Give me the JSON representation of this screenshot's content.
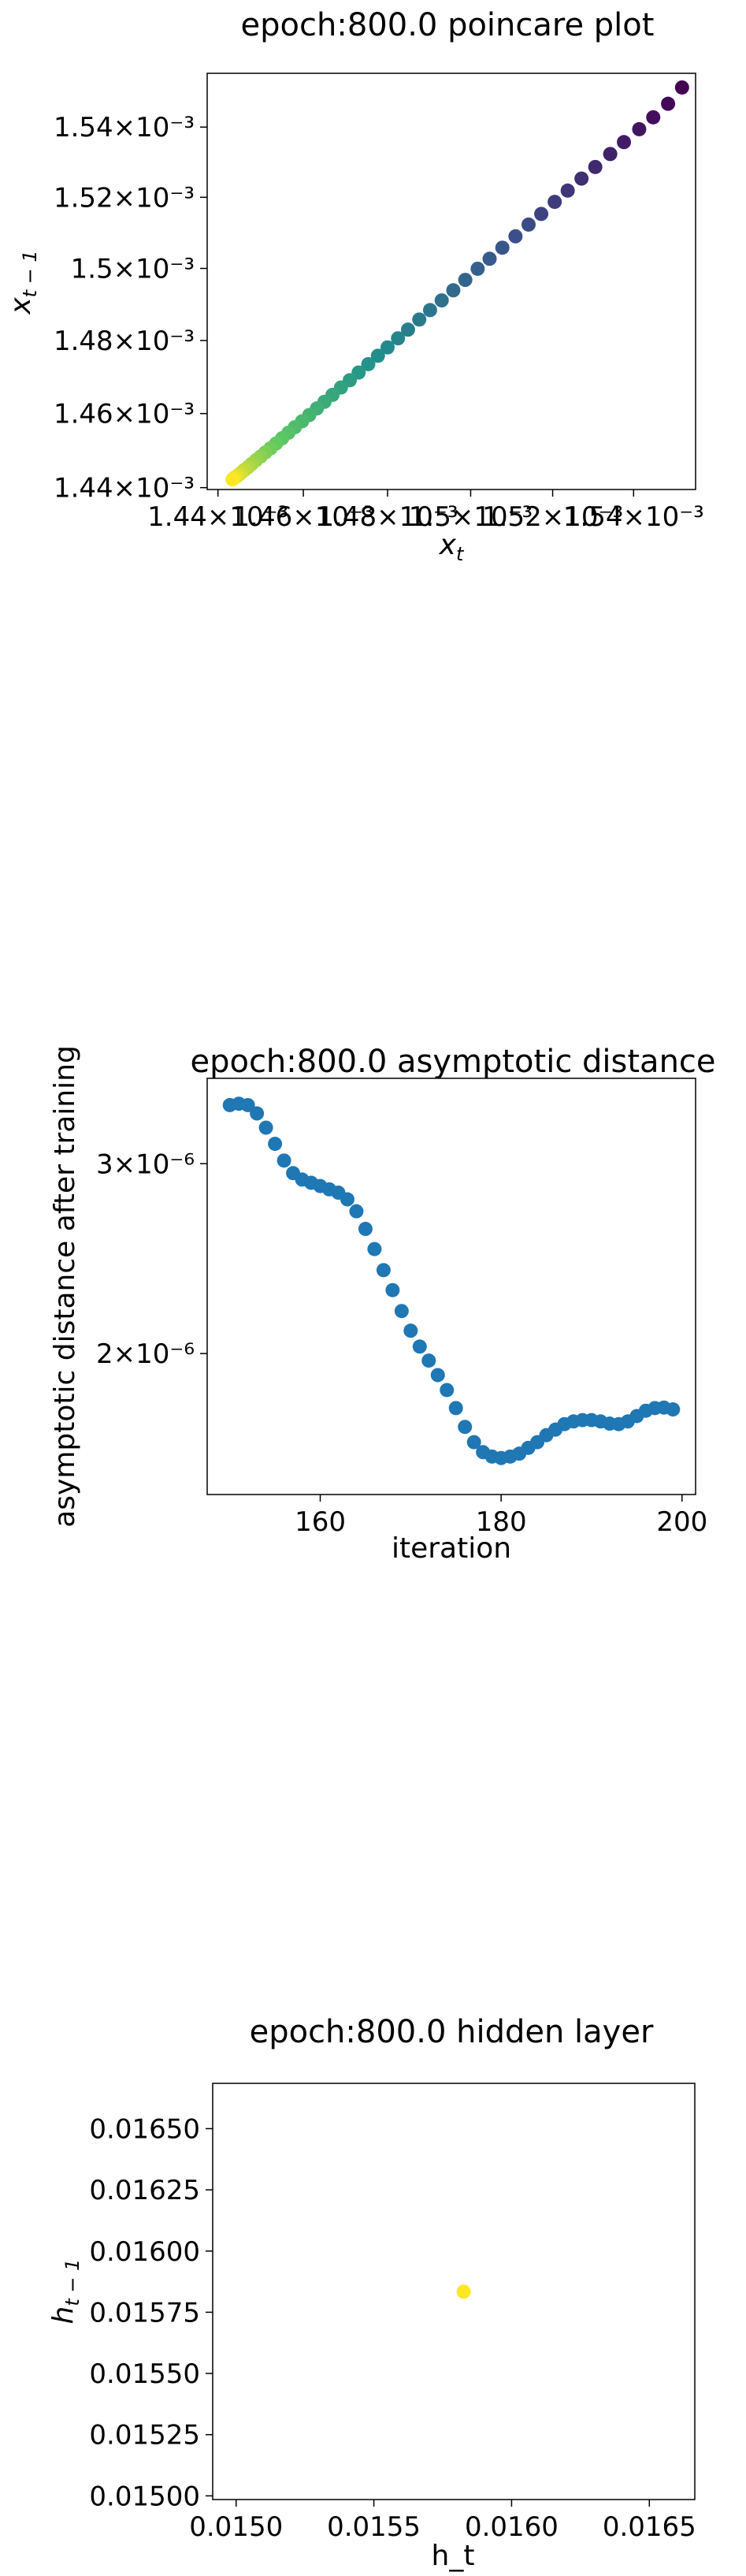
{
  "chart_data": [
    {
      "type": "scatter",
      "title": "epoch:800.0 poincare plot",
      "xlabel": "x_t",
      "ylabel": "x_{t-1}",
      "xscale": "log",
      "yscale": "log",
      "xlim": [
        0.0014375,
        0.0015555
      ],
      "ylim": [
        0.0014395,
        0.0015555
      ],
      "xticks": [
        {
          "value": 0.00144,
          "label": "1.44×10⁻³"
        },
        {
          "value": 0.00146,
          "label": "1.46×10⁻³"
        },
        {
          "value": 0.00148,
          "label": "1.48×10⁻³"
        },
        {
          "value": 0.0015,
          "label": "1.5×10⁻³"
        },
        {
          "value": 0.00152,
          "label": "1.52×10⁻³"
        },
        {
          "value": 0.00154,
          "label": "1.54×10⁻³"
        }
      ],
      "yticks": [
        {
          "value": 0.00144,
          "label": "1.44×10⁻³"
        },
        {
          "value": 0.00146,
          "label": "1.46×10⁻³"
        },
        {
          "value": 0.00148,
          "label": "1.48×10⁻³"
        },
        {
          "value": 0.0015,
          "label": "1.5×10⁻³"
        },
        {
          "value": 0.00152,
          "label": "1.52×10⁻³"
        },
        {
          "value": 0.00154,
          "label": "1.54×10⁻³"
        }
      ],
      "colormap": "viridis",
      "points": [
        [
          0.0015521,
          0.0015514
        ],
        [
          0.0015486,
          0.0015467
        ],
        [
          0.0015449,
          0.0015428
        ],
        [
          0.0015414,
          0.0015394
        ],
        [
          0.0015376,
          0.0015357
        ],
        [
          0.0015342,
          0.0015323
        ],
        [
          0.0015305,
          0.0015286
        ],
        [
          0.0015271,
          0.0015253
        ],
        [
          0.0015237,
          0.0015219
        ],
        [
          0.0015205,
          0.0015187
        ],
        [
          0.0015172,
          0.0015153
        ],
        [
          0.0015141,
          0.0015123
        ],
        [
          0.0015109,
          0.001509
        ],
        [
          0.0015077,
          0.0015058
        ],
        [
          0.0015046,
          0.0015027
        ],
        [
          0.0015017,
          0.0014999
        ],
        [
          0.0014987,
          0.0014968
        ],
        [
          0.0014958,
          0.0014939
        ],
        [
          0.001493,
          0.0014911
        ],
        [
          0.0014902,
          0.0014884
        ],
        [
          0.0014876,
          0.0014858
        ],
        [
          0.0014849,
          0.001483
        ],
        [
          0.0014825,
          0.0014806
        ],
        [
          0.00148,
          0.0014781
        ],
        [
          0.0014777,
          0.0014758
        ],
        [
          0.0014754,
          0.0014735
        ],
        [
          0.0014731,
          0.0014712
        ],
        [
          0.001471,
          0.0014691
        ],
        [
          0.0014689,
          0.0014671
        ],
        [
          0.0014669,
          0.0014651
        ],
        [
          0.001465,
          0.0014632
        ],
        [
          0.0014632,
          0.0014614
        ],
        [
          0.0014614,
          0.0014596
        ],
        [
          0.0014597,
          0.0014579
        ],
        [
          0.001458,
          0.0014563
        ],
        [
          0.0014565,
          0.0014548
        ],
        [
          0.001455,
          0.0014533
        ],
        [
          0.0014536,
          0.0014519
        ],
        [
          0.0014523,
          0.0014506
        ],
        [
          0.0014511,
          0.0014495
        ],
        [
          0.00145,
          0.0014484
        ],
        [
          0.0014489,
          0.0014474
        ],
        [
          0.0014479,
          0.0014464
        ],
        [
          0.001447,
          0.0014455
        ],
        [
          0.0014462,
          0.0014448
        ],
        [
          0.0014455,
          0.0014441
        ],
        [
          0.0014449,
          0.0014435
        ],
        [
          0.0014443,
          0.001443
        ],
        [
          0.0014438,
          0.0014426
        ],
        [
          0.0014434,
          0.0014422
        ]
      ]
    },
    {
      "type": "scatter",
      "title": "epoch:800.0 asymptotic distance",
      "xlabel": "iteration",
      "ylabel": "asymptotic distance after training",
      "yscale": "log",
      "xlim": [
        147.5,
        201.5
      ],
      "ylim": [
        1.48e-06,
        3.6e-06
      ],
      "xticks": [
        {
          "value": 160,
          "label": "160"
        },
        {
          "value": 180,
          "label": "180"
        },
        {
          "value": 200,
          "label": "200"
        }
      ],
      "yticks": [
        {
          "value": 3e-06,
          "label": "3×10⁻⁶"
        },
        {
          "value": 2e-06,
          "label": "2×10⁻⁶"
        }
      ],
      "color": "#1f77b4",
      "x": [
        150,
        151,
        152,
        153,
        154,
        155,
        156,
        157,
        158,
        159,
        160,
        161,
        162,
        163,
        164,
        165,
        166,
        167,
        168,
        169,
        170,
        171,
        172,
        173,
        174,
        175,
        176,
        177,
        178,
        179,
        180,
        181,
        182,
        183,
        184,
        185,
        186,
        187,
        188,
        189,
        190,
        191,
        192,
        193,
        194,
        195,
        196,
        197,
        198,
        199
      ],
      "y": [
        3.4e-06,
        3.41e-06,
        3.4e-06,
        3.34e-06,
        3.24e-06,
        3.13e-06,
        3.02e-06,
        2.94e-06,
        2.9e-06,
        2.88e-06,
        2.86e-06,
        2.84e-06,
        2.82e-06,
        2.78e-06,
        2.71e-06,
        2.61e-06,
        2.5e-06,
        2.39e-06,
        2.29e-06,
        2.19e-06,
        2.1e-06,
        2.03e-06,
        1.97e-06,
        1.91e-06,
        1.85e-06,
        1.78e-06,
        1.71e-06,
        1.655e-06,
        1.62e-06,
        1.605e-06,
        1.6e-06,
        1.605e-06,
        1.615e-06,
        1.635e-06,
        1.655e-06,
        1.68e-06,
        1.7e-06,
        1.72e-06,
        1.73e-06,
        1.735e-06,
        1.735e-06,
        1.73e-06,
        1.722e-06,
        1.72e-06,
        1.73e-06,
        1.75e-06,
        1.77e-06,
        1.78e-06,
        1.782e-06,
        1.775e-06
      ]
    },
    {
      "type": "scatter",
      "title": "epoch:800.0 hidden layer",
      "xlabel": "h_t",
      "ylabel": "h_{t-1}",
      "xlim": [
        0.014915,
        0.016665
      ],
      "ylim": [
        0.014985,
        0.016685
      ],
      "xticks": [
        {
          "value": 0.015,
          "label": "0.0150"
        },
        {
          "value": 0.0155,
          "label": "0.0155"
        },
        {
          "value": 0.016,
          "label": "0.0160"
        },
        {
          "value": 0.0165,
          "label": "0.0165"
        }
      ],
      "yticks": [
        {
          "value": 0.0165,
          "label": "0.01650"
        },
        {
          "value": 0.01625,
          "label": "0.01625"
        },
        {
          "value": 0.016,
          "label": "0.01600"
        },
        {
          "value": 0.01575,
          "label": "0.01575"
        },
        {
          "value": 0.0155,
          "label": "0.01550"
        },
        {
          "value": 0.01525,
          "label": "0.01525"
        },
        {
          "value": 0.015,
          "label": "0.01500"
        }
      ],
      "color": "#fde725",
      "points": [
        [
          0.015826,
          0.015834
        ]
      ]
    }
  ]
}
